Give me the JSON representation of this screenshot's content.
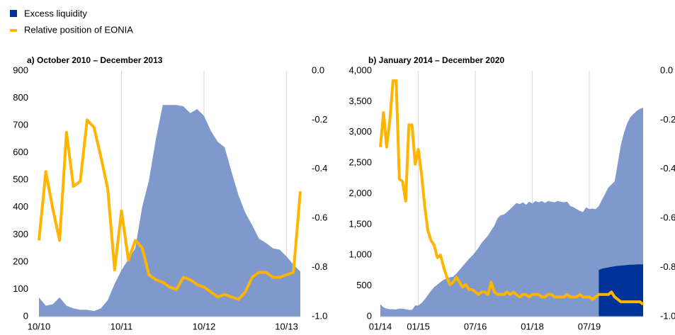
{
  "legend": [
    {
      "name": "Excess liquidity",
      "color": "#003399"
    },
    {
      "name": "Relative position of EONIA",
      "color": "#ffb400"
    }
  ],
  "chart_data": [
    {
      "type": "area",
      "title": "a) October 2010 – December 2013",
      "categories": [
        "10/10",
        null,
        null,
        null,
        null,
        null,
        null,
        null,
        null,
        null,
        null,
        null,
        "10/11",
        null,
        null,
        null,
        null,
        null,
        null,
        null,
        null,
        null,
        null,
        null,
        "10/12",
        null,
        null,
        null,
        null,
        null,
        null,
        null,
        null,
        null,
        null,
        null,
        "10/13",
        null,
        null
      ],
      "series": [
        {
          "type": "area",
          "color": "#7f99cd",
          "values": [
            70,
            40,
            45,
            70,
            40,
            30,
            25,
            25,
            20,
            30,
            60,
            120,
            170,
            210,
            250,
            400,
            500,
            650,
            775,
            775,
            775,
            770,
            745,
            760,
            735,
            680,
            640,
            620,
            530,
            445,
            380,
            335,
            285,
            270,
            250,
            245,
            220,
            190,
            165
          ]
        },
        {
          "type": "line",
          "axis": "y2",
          "color": "#ffb400",
          "values": [
            -0.69,
            -0.41,
            -0.56,
            -0.69,
            -0.25,
            -0.47,
            -0.45,
            -0.2,
            -0.23,
            -0.35,
            -0.48,
            -0.81,
            -0.57,
            -0.77,
            -0.69,
            -0.72,
            -0.83,
            -0.85,
            -0.86,
            -0.88,
            -0.89,
            -0.84,
            -0.85,
            -0.87,
            -0.88,
            -0.9,
            -0.92,
            -0.91,
            -0.92,
            -0.93,
            -0.9,
            -0.84,
            -0.82,
            -0.82,
            -0.84,
            -0.84,
            -0.83,
            -0.82,
            -0.49
          ]
        }
      ],
      "ylim": [
        0,
        900
      ],
      "yticks": [
        0,
        100,
        200,
        300,
        400,
        500,
        600,
        700,
        800,
        900
      ],
      "y2lim": [
        -1,
        0
      ],
      "y2ticks": [
        {
          "value": 0,
          "label": "0.0"
        },
        -0.2,
        -0.4,
        -0.6,
        -0.8,
        {
          "value": -1,
          "label": "-1.0"
        }
      ],
      "grid": true
    },
    {
      "type": "area",
      "title": "b) January 2014 – December 2020",
      "categories": [
        "01/14",
        null,
        null,
        null,
        null,
        null,
        null,
        null,
        null,
        null,
        null,
        null,
        "01/15",
        null,
        null,
        null,
        null,
        null,
        null,
        null,
        null,
        null,
        null,
        null,
        null,
        null,
        null,
        null,
        null,
        null,
        "07/16",
        null,
        null,
        null,
        null,
        null,
        null,
        null,
        null,
        null,
        null,
        null,
        null,
        null,
        null,
        null,
        null,
        null,
        "01/18",
        null,
        null,
        null,
        null,
        null,
        null,
        null,
        null,
        null,
        null,
        null,
        null,
        null,
        null,
        null,
        null,
        null,
        "07/19",
        null,
        null,
        null,
        null,
        null,
        null,
        null,
        null,
        null,
        null,
        null,
        null,
        null,
        null,
        null,
        null,
        null
      ],
      "series": [
        {
          "type": "area",
          "color": "#7f99cd",
          "values": [
            200,
            150,
            130,
            120,
            120,
            115,
            130,
            130,
            120,
            110,
            110,
            180,
            180,
            220,
            280,
            350,
            420,
            480,
            520,
            560,
            600,
            620,
            640,
            650,
            700,
            760,
            820,
            880,
            940,
            990,
            1050,
            1120,
            1200,
            1260,
            1320,
            1400,
            1480,
            1600,
            1650,
            1660,
            1700,
            1750,
            1800,
            1850,
            1830,
            1860,
            1820,
            1870,
            1840,
            1880,
            1860,
            1880,
            1850,
            1880,
            1870,
            1860,
            1880,
            1870,
            1860,
            1870,
            1800,
            1780,
            1750,
            1720,
            1700,
            1780,
            1750,
            1760,
            1750,
            1800,
            1900,
            2000,
            2100,
            2150,
            2200,
            2500,
            2800,
            3000,
            3150,
            3250,
            3300,
            3350,
            3380,
            3400
          ]
        },
        {
          "type": "area",
          "color": "#003399",
          "values": [
            null,
            null,
            null,
            null,
            null,
            null,
            null,
            null,
            null,
            null,
            null,
            null,
            null,
            null,
            null,
            null,
            null,
            null,
            null,
            null,
            null,
            null,
            null,
            null,
            null,
            null,
            null,
            null,
            null,
            null,
            null,
            null,
            null,
            null,
            null,
            null,
            null,
            null,
            null,
            null,
            null,
            null,
            null,
            null,
            null,
            null,
            null,
            null,
            null,
            null,
            null,
            null,
            null,
            null,
            null,
            null,
            null,
            null,
            null,
            null,
            null,
            null,
            null,
            null,
            null,
            null,
            null,
            null,
            null,
            760,
            780,
            790,
            800,
            810,
            820,
            825,
            830,
            835,
            840,
            845,
            845,
            850,
            850,
            850
          ]
        },
        {
          "type": "line",
          "axis": "y2",
          "color": "#ffb400",
          "values": [
            -0.31,
            -0.17,
            -0.31,
            -0.2,
            -0.04,
            -0.04,
            -0.44,
            -0.45,
            -0.53,
            -0.22,
            -0.22,
            -0.38,
            -0.32,
            -0.42,
            -0.55,
            -0.65,
            -0.69,
            -0.71,
            -0.76,
            -0.75,
            -0.8,
            -0.84,
            -0.87,
            -0.86,
            -0.84,
            -0.86,
            -0.88,
            -0.87,
            -0.89,
            -0.89,
            -0.9,
            -0.91,
            -0.9,
            -0.9,
            -0.91,
            -0.86,
            -0.9,
            -0.91,
            -0.91,
            -0.91,
            -0.9,
            -0.91,
            -0.9,
            -0.91,
            -0.92,
            -0.91,
            -0.91,
            -0.92,
            -0.91,
            -0.91,
            -0.91,
            -0.92,
            -0.92,
            -0.91,
            -0.91,
            -0.92,
            -0.92,
            -0.92,
            -0.92,
            -0.91,
            -0.92,
            -0.92,
            -0.92,
            -0.91,
            -0.92,
            -0.92,
            -0.92,
            -0.93,
            -0.92,
            -0.91,
            -0.91,
            -0.91,
            -0.91,
            -0.9,
            -0.92,
            -0.93,
            -0.94,
            -0.94,
            -0.94,
            -0.94,
            -0.94,
            -0.94,
            -0.94,
            -0.95
          ]
        }
      ],
      "ylim": [
        0,
        4000
      ],
      "yticks": [
        0,
        500,
        {
          "value": 1000,
          "label": "1,000"
        },
        {
          "value": 1500,
          "label": "1,500"
        },
        {
          "value": 2000,
          "label": "2,000"
        },
        {
          "value": 2500,
          "label": "2,500"
        },
        {
          "value": 3000,
          "label": "3,000"
        },
        {
          "value": 3500,
          "label": "3,500"
        },
        {
          "value": 4000,
          "label": "4,000"
        }
      ],
      "y2lim": [
        -1,
        0
      ],
      "y2ticks": [
        {
          "value": 0,
          "label": "0.0"
        },
        -0.2,
        -0.4,
        -0.6,
        -0.8,
        {
          "value": -1,
          "label": "-1.0"
        }
      ],
      "grid": true
    }
  ]
}
